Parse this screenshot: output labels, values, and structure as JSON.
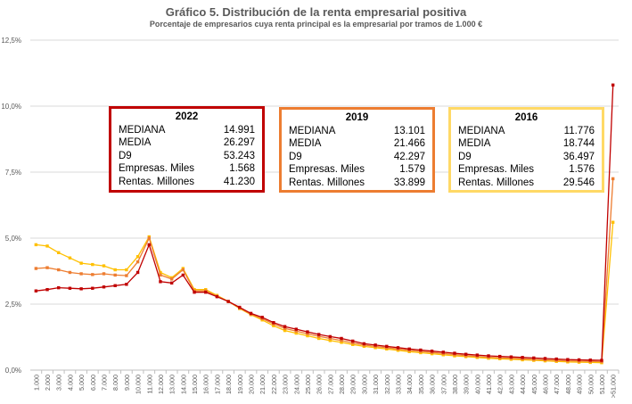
{
  "chart_data": {
    "type": "line",
    "title": "Gráfico 5. Distribución de la renta empresarial positiva",
    "subtitle": "Porcentaje de empresarios cuya renta principal es la empresarial por tramos de 1.000 €",
    "xlabel": "",
    "ylabel": "",
    "ylim": [
      0,
      12.5
    ],
    "yticks": [
      "0,0%",
      "2,5%",
      "5,0%",
      "7,5%",
      "10,0%",
      "12,5%"
    ],
    "ytick_values": [
      0,
      2.5,
      5,
      7.5,
      10,
      12.5
    ],
    "grid": true,
    "categories": [
      "1.000",
      "2.000",
      "3.000",
      "4.000",
      "5.000",
      "6.000",
      "7.000",
      "8.000",
      "9.000",
      "10.000",
      "11.000",
      "12.000",
      "13.000",
      "14.000",
      "15.000",
      "16.000",
      "17.000",
      "18.000",
      "19.000",
      "20.000",
      "21.000",
      "22.000",
      "23.000",
      "24.000",
      "25.000",
      "26.000",
      "27.000",
      "28.000",
      "29.000",
      "30.000",
      "31.000",
      "32.000",
      "33.000",
      "34.000",
      "35.000",
      "36.000",
      "37.000",
      "38.000",
      "39.000",
      "40.000",
      "41.000",
      "42.000",
      "43.000",
      "44.000",
      "45.000",
      "46.000",
      "47.000",
      "48.000",
      "49.000",
      "50.000",
      "51.000",
      ">51.000"
    ],
    "series": [
      {
        "name": "2022",
        "color": "#c00000",
        "values": [
          3.0,
          3.05,
          3.12,
          3.1,
          3.08,
          3.1,
          3.15,
          3.2,
          3.25,
          3.7,
          4.75,
          3.35,
          3.3,
          3.6,
          2.95,
          2.95,
          2.78,
          2.6,
          2.38,
          2.15,
          2.0,
          1.8,
          1.65,
          1.55,
          1.45,
          1.35,
          1.27,
          1.2,
          1.1,
          1.0,
          0.95,
          0.9,
          0.85,
          0.8,
          0.76,
          0.72,
          0.68,
          0.64,
          0.6,
          0.57,
          0.54,
          0.52,
          0.5,
          0.48,
          0.46,
          0.44,
          0.42,
          0.4,
          0.39,
          0.38,
          0.37,
          10.8
        ]
      },
      {
        "name": "2019",
        "color": "#ed7d31",
        "values": [
          3.85,
          3.88,
          3.8,
          3.7,
          3.65,
          3.62,
          3.65,
          3.6,
          3.58,
          4.1,
          5.0,
          3.6,
          3.45,
          3.8,
          3.0,
          3.0,
          2.8,
          2.6,
          2.35,
          2.12,
          1.95,
          1.75,
          1.58,
          1.48,
          1.38,
          1.28,
          1.2,
          1.12,
          1.03,
          0.95,
          0.9,
          0.85,
          0.8,
          0.75,
          0.71,
          0.67,
          0.63,
          0.59,
          0.55,
          0.52,
          0.49,
          0.47,
          0.45,
          0.43,
          0.41,
          0.39,
          0.37,
          0.35,
          0.34,
          0.33,
          0.32,
          7.25
        ]
      },
      {
        "name": "2016",
        "color": "#ffc000",
        "values": [
          4.75,
          4.7,
          4.45,
          4.25,
          4.05,
          4.0,
          3.95,
          3.8,
          3.8,
          4.3,
          5.05,
          3.7,
          3.5,
          3.85,
          3.05,
          3.05,
          2.83,
          2.6,
          2.33,
          2.1,
          1.9,
          1.68,
          1.5,
          1.4,
          1.3,
          1.2,
          1.12,
          1.05,
          0.97,
          0.9,
          0.85,
          0.8,
          0.75,
          0.7,
          0.66,
          0.62,
          0.58,
          0.54,
          0.51,
          0.48,
          0.45,
          0.43,
          0.41,
          0.39,
          0.37,
          0.35,
          0.33,
          0.31,
          0.3,
          0.29,
          0.28,
          5.6
        ]
      }
    ]
  },
  "stat_labels": [
    "MEDIANA",
    "MEDIA",
    "D9",
    "Empresas. Miles",
    "Rentas. Millones"
  ],
  "stat_boxes": [
    {
      "year": "2022",
      "color": "#c00000",
      "values": [
        "14.991",
        "26.297",
        "53.243",
        "1.568",
        "41.230"
      ]
    },
    {
      "year": "2019",
      "color": "#ed7d31",
      "values": [
        "13.101",
        "21.466",
        "42.297",
        "1.579",
        "33.899"
      ]
    },
    {
      "year": "2016",
      "color": "#ffd966",
      "values": [
        "11.776",
        "18.744",
        "36.497",
        "1.576",
        "29.546"
      ]
    }
  ]
}
